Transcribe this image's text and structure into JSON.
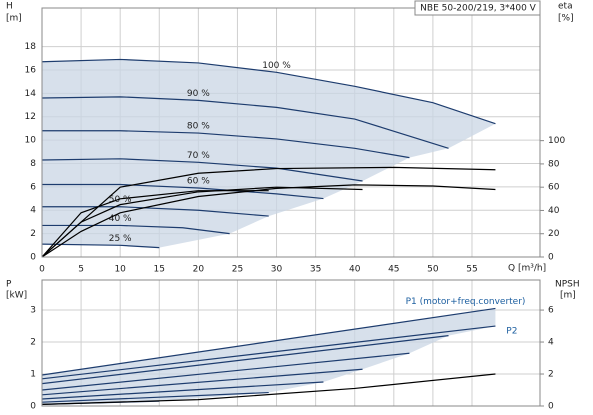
{
  "chart_data": [
    {
      "type": "line",
      "title": "NBE 50-200/219, 3*400 V",
      "y_label": "H",
      "y_unit": "[m]",
      "y2_label": "eta",
      "y2_unit": "[%]",
      "x_label": "Q [m³/h]",
      "xlim": [
        0,
        63.7
      ],
      "xticks": [
        0,
        5,
        10,
        15,
        20,
        25,
        30,
        35,
        40,
        45,
        50,
        55
      ],
      "ylim": [
        0,
        21.3
      ],
      "yticks": [
        0,
        2,
        4,
        6,
        8,
        10,
        12,
        14,
        16,
        18
      ],
      "y2lim": [
        0,
        214
      ],
      "y2ticks": [
        0,
        20,
        40,
        60,
        80,
        100
      ],
      "grid": true,
      "shade": "#c9d5e4",
      "series": [
        {
          "name": "100 %",
          "color": "#1d3c6e",
          "x": [
            0,
            10,
            20,
            30,
            40,
            50,
            58
          ],
          "values": [
            16.7,
            16.9,
            16.6,
            15.8,
            14.6,
            13.2,
            11.4
          ]
        },
        {
          "name": "90 %",
          "color": "#1d3c6e",
          "x": [
            0,
            10,
            20,
            30,
            40,
            52
          ],
          "values": [
            13.6,
            13.7,
            13.4,
            12.8,
            11.8,
            9.3
          ]
        },
        {
          "name": "80 %",
          "color": "#1d3c6e",
          "x": [
            0,
            10,
            20,
            30,
            40,
            47
          ],
          "values": [
            10.8,
            10.8,
            10.6,
            10.1,
            9.3,
            8.5
          ]
        },
        {
          "name": "70 %",
          "color": "#1d3c6e",
          "x": [
            0,
            10,
            20,
            30,
            41
          ],
          "values": [
            8.3,
            8.4,
            8.1,
            7.6,
            6.5
          ]
        },
        {
          "name": "60 %",
          "color": "#1d3c6e",
          "x": [
            0,
            10,
            20,
            30,
            36
          ],
          "values": [
            6.2,
            6.2,
            5.9,
            5.4,
            5.0
          ]
        },
        {
          "name": "50 %",
          "color": "#1d3c6e",
          "x": [
            0,
            10,
            20,
            29
          ],
          "values": [
            4.3,
            4.3,
            4.0,
            3.5
          ]
        },
        {
          "name": "40 %",
          "color": "#1d3c6e",
          "x": [
            0,
            10,
            18,
            24
          ],
          "values": [
            2.7,
            2.7,
            2.5,
            2.0
          ]
        },
        {
          "name": "25 %",
          "color": "#1d3c6e",
          "x": [
            0,
            10,
            15
          ],
          "values": [
            1.1,
            1.0,
            0.8
          ]
        },
        {
          "color": "#000000",
          "axis": "y2",
          "x": [
            0,
            5,
            10,
            20,
            30,
            40,
            50,
            58
          ],
          "values": [
            0,
            22,
            38,
            52,
            59,
            62,
            61,
            58
          ]
        },
        {
          "color": "#000000",
          "axis": "y2",
          "x": [
            0,
            10,
            20,
            30,
            45,
            58
          ],
          "values": [
            0,
            60,
            72,
            76,
            77,
            75
          ]
        },
        {
          "color": "#000000",
          "axis": "y2",
          "x": [
            0,
            5,
            10,
            20,
            30,
            41
          ],
          "values": [
            0,
            30,
            45,
            56,
            60,
            58
          ]
        },
        {
          "color": "#000000",
          "axis": "y2",
          "x": [
            0,
            5,
            10,
            20,
            29
          ],
          "values": [
            0,
            38,
            50,
            57,
            57
          ]
        }
      ]
    },
    {
      "type": "line",
      "y_label": "P",
      "y_unit": "[kW]",
      "y2_label": "NPSH",
      "y2_unit": "[m]",
      "xlim": [
        0,
        63.7
      ],
      "xticks": [
        0,
        5,
        10,
        15,
        20,
        25,
        30,
        35,
        40,
        45,
        50,
        55
      ],
      "ylim": [
        0,
        3.94
      ],
      "yticks": [
        0,
        1,
        2,
        3
      ],
      "y2lim": [
        0,
        7.88
      ],
      "y2ticks": [
        0,
        2,
        4,
        6
      ],
      "grid": true,
      "shade": "#c9d5e4",
      "series": [
        {
          "name": "P1 (motor+freq.converter)",
          "color": "#1d3c6e",
          "x": [
            0,
            58
          ],
          "values": [
            0.97,
            3.05
          ]
        },
        {
          "name": "P2",
          "color": "#1d3c6e",
          "x": [
            0,
            58
          ],
          "values": [
            0.85,
            2.5
          ]
        },
        {
          "color": "#1d3c6e",
          "x": [
            0,
            52
          ],
          "values": [
            0.7,
            2.2
          ]
        },
        {
          "color": "#1d3c6e",
          "x": [
            0,
            47
          ],
          "values": [
            0.5,
            1.65
          ]
        },
        {
          "color": "#1d3c6e",
          "x": [
            0,
            41
          ],
          "values": [
            0.35,
            1.15
          ]
        },
        {
          "color": "#1d3c6e",
          "x": [
            0,
            36
          ],
          "values": [
            0.22,
            0.75
          ]
        },
        {
          "color": "#1d3c6e",
          "x": [
            0,
            29
          ],
          "values": [
            0.12,
            0.42
          ]
        },
        {
          "color": "#1d3c6e",
          "x": [
            0,
            15
          ],
          "values": [
            0.05,
            0.15
          ]
        },
        {
          "color": "#000000",
          "axis": "y2",
          "x": [
            0,
            20,
            40,
            58
          ],
          "values": [
            0.1,
            0.4,
            1.1,
            2.0
          ]
        }
      ]
    }
  ]
}
